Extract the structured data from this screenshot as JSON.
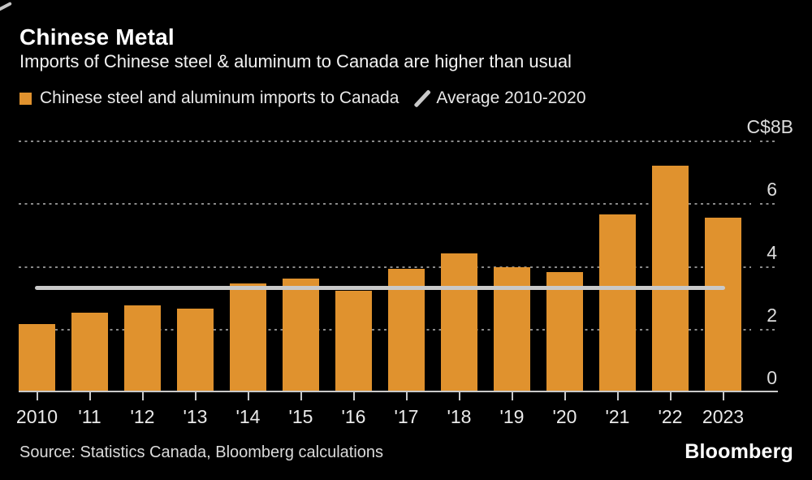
{
  "header": {
    "title": "Chinese Metal",
    "subtitle": "Imports of Chinese steel & aluminum to Canada are higher than usual"
  },
  "legend": {
    "series_label": "Chinese steel and aluminum imports to Canada",
    "series_swatch_color": "#e0922e",
    "average_label": "Average 2010-2020",
    "average_icon": "slash-icon",
    "average_line_color": "#c9c9c9"
  },
  "chart_data": {
    "type": "bar",
    "title": "Chinese Metal",
    "subtitle": "Imports of Chinese steel & aluminum to Canada are higher than usual",
    "categories": [
      "2010",
      "'11",
      "'12",
      "'13",
      "'14",
      "'15",
      "'16",
      "'17",
      "'18",
      "'19",
      "'20",
      "'21",
      "'22",
      "2023"
    ],
    "values": [
      2.15,
      2.5,
      2.75,
      2.65,
      3.45,
      3.6,
      3.2,
      3.9,
      4.4,
      3.95,
      3.8,
      5.65,
      7.2,
      5.55
    ],
    "series_name": "Chinese steel and aluminum imports to Canada",
    "average_line": {
      "name": "Average 2010-2020",
      "value": 3.3,
      "spans": [
        "2010",
        "2023"
      ],
      "color": "#c9c9c9"
    },
    "xlabel": "",
    "ylabel": "C$ billions",
    "y_axis": {
      "top_label": "C$8B",
      "ticks": [
        8,
        6,
        4,
        2,
        0
      ],
      "tick_labels": [
        "C$8B",
        "6",
        "4",
        "2",
        "0"
      ],
      "ylim": [
        0,
        8
      ]
    },
    "grid": "horizontal-dotted",
    "grid_color": "#8a8a8a",
    "bar_color": "#e0922e",
    "background_color": "#000000",
    "legend_position": "top-left"
  },
  "footer": {
    "source": "Source: Statistics Canada, Bloomberg calculations",
    "brand": "Bloomberg"
  }
}
